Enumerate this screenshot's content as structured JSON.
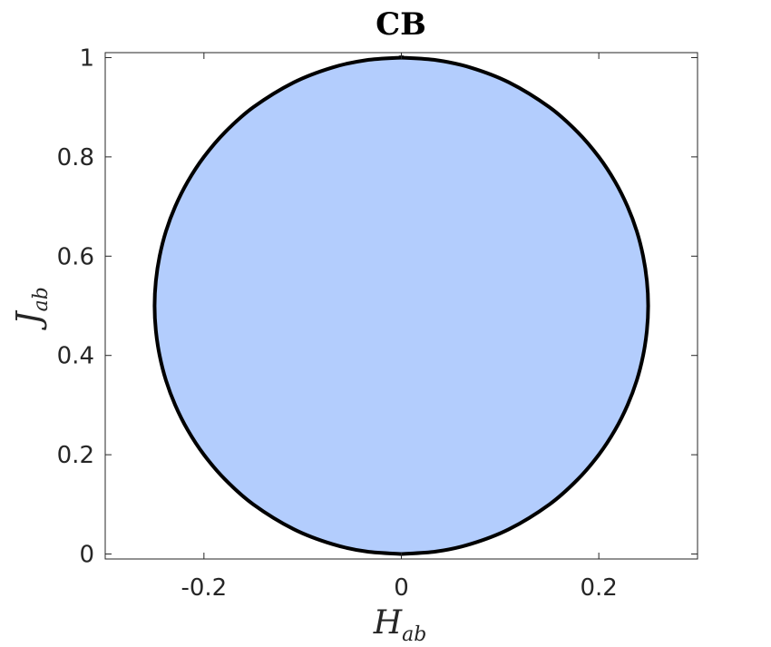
{
  "chart_data": {
    "type": "area",
    "title": "CB",
    "xlabel": {
      "main": "H",
      "sub": "ab"
    },
    "ylabel": {
      "main": "J",
      "sub": "ab"
    },
    "xlim": [
      -0.3,
      0.3
    ],
    "ylim": [
      -0.01,
      1.01
    ],
    "xticks": [
      -0.2,
      0,
      0.2
    ],
    "xtick_labels": [
      "-0.2",
      "0",
      "0.2"
    ],
    "yticks": [
      0,
      0.2,
      0.4,
      0.6,
      0.8,
      1
    ],
    "ytick_labels": [
      "0",
      "0.2",
      "0.4",
      "0.6",
      "0.8",
      "1"
    ],
    "grid": false,
    "fill_color": "#b3cdfd",
    "boundary_color": "#000000",
    "boundary": {
      "description": "symmetric lens region between curves x = ±sqrt(y(1-y))/2",
      "y": [
        0,
        0.005,
        0.02,
        0.05,
        0.1,
        0.15,
        0.2,
        0.25,
        0.3,
        0.35,
        0.4,
        0.45,
        0.5,
        0.55,
        0.6,
        0.65,
        0.7,
        0.75,
        0.8,
        0.85,
        0.9,
        0.95,
        0.98,
        0.995,
        1
      ],
      "x_right": [
        0,
        0.0353,
        0.07,
        0.109,
        0.15,
        0.1785,
        0.2,
        0.2165,
        0.2291,
        0.2385,
        0.2449,
        0.2487,
        0.25,
        0.2487,
        0.2449,
        0.2385,
        0.2291,
        0.2165,
        0.2,
        0.1785,
        0.15,
        0.109,
        0.07,
        0.0353,
        0
      ]
    }
  }
}
